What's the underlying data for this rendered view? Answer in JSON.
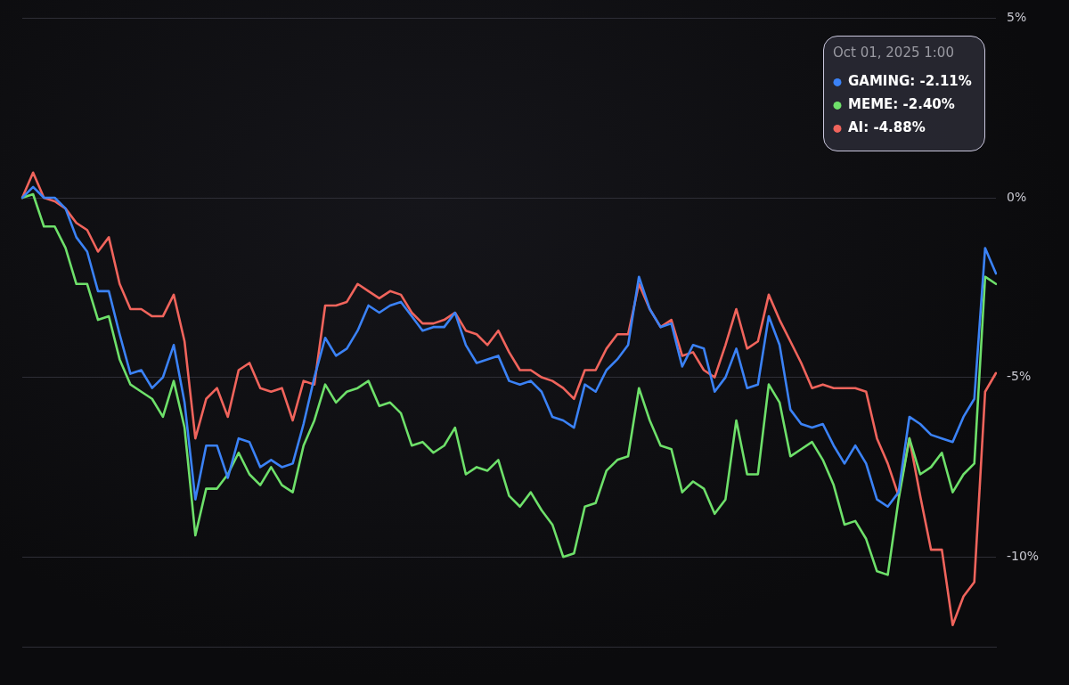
{
  "chart_data": {
    "type": "line",
    "categories": [
      null,
      null,
      null,
      null,
      null,
      null,
      null,
      null,
      null,
      null,
      null,
      null,
      null,
      null,
      null,
      null,
      null,
      null,
      null,
      null,
      null,
      null,
      null,
      null,
      null,
      null,
      null,
      null,
      null,
      null,
      null,
      null,
      null,
      null,
      null,
      null,
      null,
      null,
      null,
      null,
      null,
      null,
      null,
      null,
      null,
      null,
      null,
      null,
      null,
      null,
      null,
      null,
      null,
      null,
      null,
      null,
      null,
      null,
      null,
      null,
      null,
      null,
      null,
      null,
      null,
      null,
      null,
      null,
      null,
      null,
      null,
      null,
      null,
      null,
      null,
      null,
      null,
      null,
      null,
      null,
      null,
      null,
      null,
      null,
      null,
      null,
      null,
      null,
      null,
      null,
      null
    ],
    "series": [
      {
        "name": "GAMING: -2.11%",
        "color": "#3b82f6",
        "values": [
          0,
          0.3,
          0.0,
          0.0,
          -0.3,
          -1.1,
          -1.5,
          -2.6,
          -2.6,
          -3.8,
          -4.9,
          -4.8,
          -5.3,
          -5.0,
          -4.1,
          -5.7,
          -8.4,
          -6.9,
          -6.9,
          -7.8,
          -6.7,
          -6.8,
          -7.5,
          -7.3,
          -7.5,
          -7.4,
          -6.3,
          -5.0,
          -3.9,
          -4.4,
          -4.2,
          -3.7,
          -3.0,
          -3.2,
          -3.0,
          -2.9,
          -3.3,
          -3.7,
          -3.6,
          -3.6,
          -3.2,
          -4.1,
          -4.6,
          -4.5,
          -4.4,
          -5.1,
          -5.2,
          -5.1,
          -5.4,
          -6.1,
          -6.2,
          -6.4,
          -5.2,
          -5.4,
          -4.8,
          -4.5,
          -4.1,
          -2.2,
          -3.1,
          -3.6,
          -3.5,
          -4.7,
          -4.1,
          -4.2,
          -5.4,
          -5.0,
          -4.2,
          -5.3,
          -5.2,
          -3.3,
          -4.1,
          -5.9,
          -6.3,
          -6.4,
          -6.3,
          -6.9,
          -7.4,
          -6.9,
          -7.4,
          -8.4,
          -8.6,
          -8.2,
          -6.1,
          -6.3,
          -6.6,
          -6.7,
          -6.8,
          -6.1,
          -5.6,
          -1.4,
          -2.11
        ]
      },
      {
        "name": "MEME: -2.40%",
        "color": "#6ee06a",
        "values": [
          0,
          0.1,
          -0.8,
          -0.8,
          -1.4,
          -2.4,
          -2.4,
          -3.4,
          -3.3,
          -4.5,
          -5.2,
          -5.4,
          -5.6,
          -6.1,
          -5.1,
          -6.4,
          -9.4,
          -8.1,
          -8.1,
          -7.7,
          -7.1,
          -7.7,
          -8.0,
          -7.5,
          -8.0,
          -8.2,
          -6.9,
          -6.2,
          -5.2,
          -5.7,
          -5.4,
          -5.3,
          -5.1,
          -5.8,
          -5.7,
          -6.0,
          -6.9,
          -6.8,
          -7.1,
          -6.9,
          -6.4,
          -7.7,
          -7.5,
          -7.6,
          -7.3,
          -8.3,
          -8.6,
          -8.2,
          -8.7,
          -9.1,
          -10.0,
          -9.9,
          -8.6,
          -8.5,
          -7.6,
          -7.3,
          -7.2,
          -5.3,
          -6.2,
          -6.9,
          -7.0,
          -8.2,
          -7.9,
          -8.1,
          -8.8,
          -8.4,
          -6.2,
          -7.7,
          -7.7,
          -5.2,
          -5.7,
          -7.2,
          -7.0,
          -6.8,
          -7.3,
          -8.0,
          -9.1,
          -9.0,
          -9.5,
          -10.4,
          -10.5,
          -8.4,
          -6.7,
          -7.7,
          -7.5,
          -7.1,
          -8.2,
          -7.7,
          -7.4,
          -2.2,
          -2.4
        ]
      },
      {
        "name": "AI: -4.88%",
        "color": "#f0645c",
        "values": [
          0,
          0.7,
          0,
          -0.1,
          -0.3,
          -0.7,
          -0.9,
          -1.5,
          -1.1,
          -2.4,
          -3.1,
          -3.1,
          -3.3,
          -3.3,
          -2.7,
          -4.0,
          -6.7,
          -5.6,
          -5.3,
          -6.1,
          -4.8,
          -4.6,
          -5.3,
          -5.4,
          -5.3,
          -6.2,
          -5.1,
          -5.2,
          -3.0,
          -3.0,
          -2.9,
          -2.4,
          -2.6,
          -2.8,
          -2.6,
          -2.7,
          -3.2,
          -3.5,
          -3.5,
          -3.4,
          -3.2,
          -3.7,
          -3.8,
          -4.1,
          -3.7,
          -4.3,
          -4.8,
          -4.8,
          -5.0,
          -5.1,
          -5.3,
          -5.6,
          -4.8,
          -4.8,
          -4.2,
          -3.8,
          -3.8,
          -2.4,
          -3.1,
          -3.6,
          -3.4,
          -4.4,
          -4.3,
          -4.8,
          -5.0,
          -4.1,
          -3.1,
          -4.2,
          -4.0,
          -2.7,
          -3.4,
          -4.0,
          -4.6,
          -5.3,
          -5.2,
          -5.3,
          -5.3,
          -5.3,
          -5.4,
          -6.7,
          -7.4,
          -8.3,
          -6.7,
          -8.3,
          -9.8,
          -9.8,
          -11.9,
          -11.1,
          -10.7,
          -5.4,
          -4.88
        ]
      }
    ],
    "ylim": [
      -12.5,
      5
    ],
    "yticks": [
      {
        "value": 5,
        "label": "5%"
      },
      {
        "value": 0,
        "label": "0%"
      },
      {
        "value": -5,
        "label": "-5%"
      },
      {
        "value": -10,
        "label": "-10%"
      }
    ],
    "grid": "y",
    "legend": "top right",
    "legend_title": "Oct 01, 2025 1:00",
    "marker": "none",
    "line_style": "solid",
    "tick_labels": "y"
  }
}
